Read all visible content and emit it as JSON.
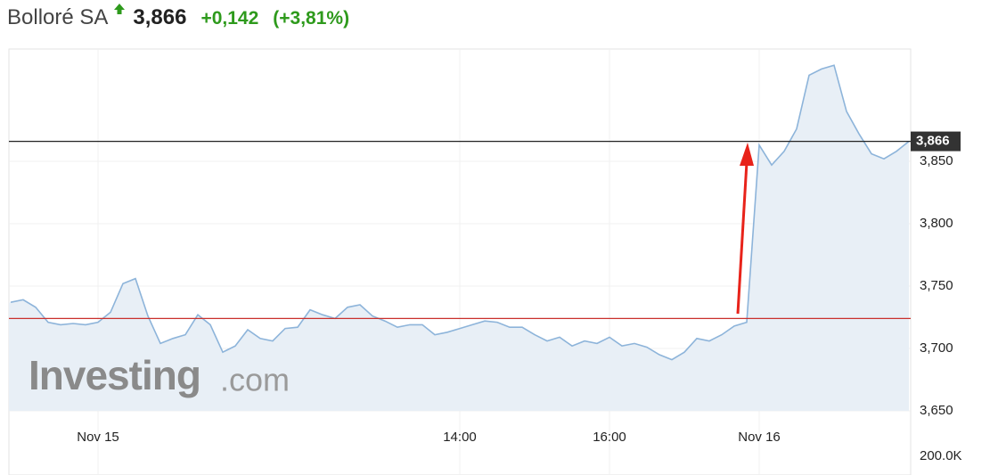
{
  "header": {
    "name": "Bolloré SA",
    "price": "3,866",
    "change": "+0,142",
    "change_pct": "(+3,81%)"
  },
  "chart_data": {
    "type": "area",
    "categories": [
      null,
      null,
      null,
      null,
      null,
      null,
      null,
      "Nov 15",
      null,
      null,
      null,
      null,
      null,
      null,
      null,
      null,
      null,
      null,
      null,
      null,
      null,
      null,
      null,
      null,
      null,
      null,
      null,
      null,
      null,
      null,
      null,
      null,
      null,
      null,
      null,
      null,
      "14:00",
      null,
      null,
      null,
      null,
      null,
      null,
      null,
      null,
      null,
      null,
      null,
      "16:00",
      null,
      null,
      null,
      null,
      null,
      null,
      null,
      null,
      null,
      null,
      null,
      "Nov 16",
      null,
      null,
      null,
      null,
      null,
      null,
      null,
      null,
      null,
      null,
      null,
      null
    ],
    "values": [
      3737,
      3739,
      3733,
      3721,
      3719,
      3720,
      3719,
      3721,
      3729,
      3752,
      3756,
      3726,
      3704,
      3708,
      3711,
      3727,
      3719,
      3697,
      3702,
      3715,
      3708,
      3706,
      3716,
      3717,
      3731,
      3727,
      3724,
      3733,
      3735,
      3726,
      3722,
      3717,
      3719,
      3719,
      3711,
      3713,
      3716,
      3719,
      3722,
      3721,
      3717,
      3717,
      3711,
      3706,
      3709,
      3702,
      3706,
      3704,
      3709,
      3702,
      3704,
      3701,
      3695,
      3691,
      3697,
      3708,
      3706,
      3711,
      3718,
      3721,
      3863,
      3847,
      3858,
      3876,
      3919,
      3924,
      3927,
      3890,
      3872,
      3856,
      3852,
      3858,
      3866
    ],
    "color": "#8db4da",
    "fill": "#e8eff6",
    "ylim": [
      3650,
      3940
    ],
    "yticks": [
      {
        "value": 3650,
        "label": "3,650"
      },
      {
        "value": 3700,
        "label": "3,700"
      },
      {
        "value": 3750,
        "label": "3,750"
      },
      {
        "value": 3800,
        "label": "3,800"
      },
      {
        "value": 3850,
        "label": "3,850"
      }
    ],
    "grid": true,
    "current_line": {
      "value": 3866,
      "label": "3,866",
      "color": "#222222"
    },
    "previous_close_line": {
      "value": 3724,
      "color": "#c9302c"
    },
    "volume_label": "200.0K",
    "watermark": {
      "brand": "Investing",
      "suffix": ".com"
    }
  }
}
